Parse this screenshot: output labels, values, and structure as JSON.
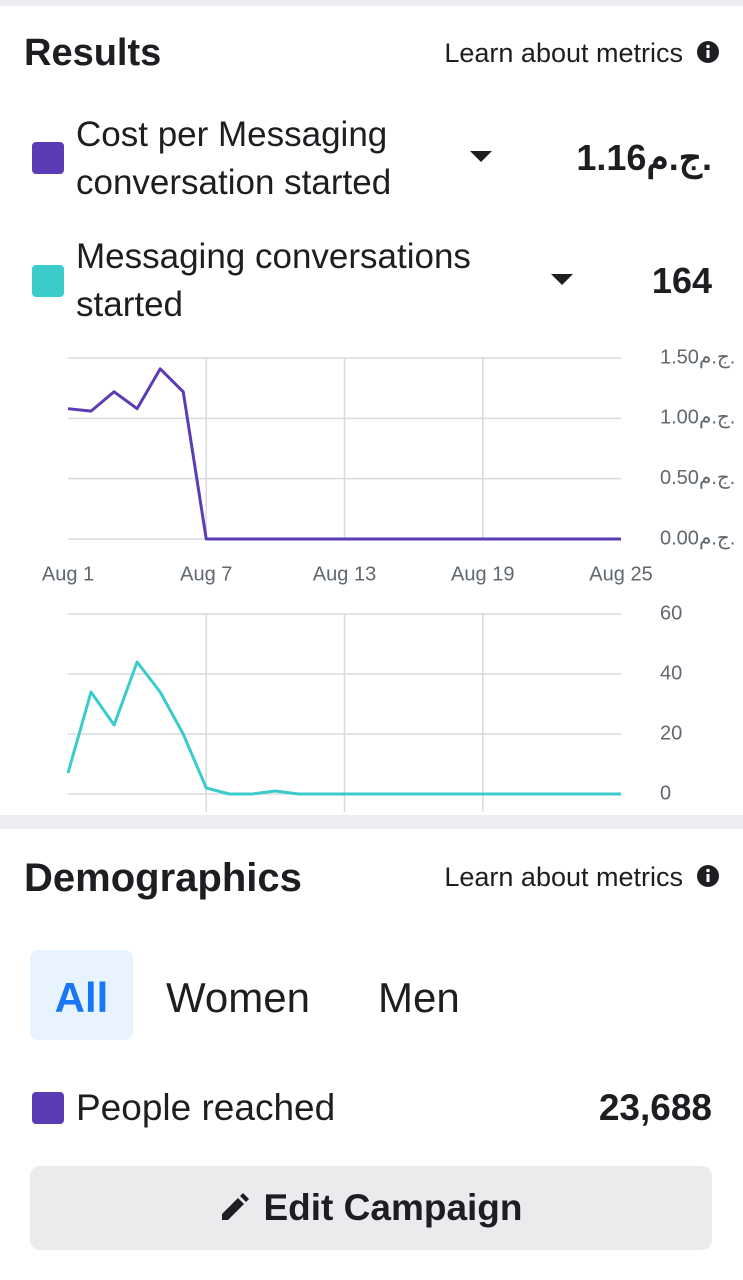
{
  "results": {
    "title": "Results",
    "learn_link": "Learn about metrics",
    "metrics": [
      {
        "label": "Cost per Messaging conversation started",
        "value": "1.16ج.م."
      },
      {
        "label": "Messaging conversations started",
        "value": "164"
      }
    ]
  },
  "chart_data": [
    {
      "type": "line",
      "categories": [
        "Aug 1",
        null,
        null,
        null,
        null,
        null,
        "Aug 7",
        null,
        null,
        null,
        null,
        null,
        "Aug 13",
        null,
        null,
        null,
        null,
        null,
        "Aug 19",
        null,
        null,
        null,
        null,
        null,
        "Aug 25"
      ],
      "series": [
        {
          "color": "#5b3cb4",
          "values": [
            1.08,
            1.06,
            1.22,
            1.08,
            1.41,
            1.22,
            0,
            0,
            0,
            0,
            0,
            0,
            0,
            0,
            0,
            0,
            0,
            0,
            0,
            0,
            0,
            0,
            0,
            0,
            0
          ]
        }
      ],
      "ylim": [
        0,
        1.5
      ],
      "yticks": [
        {
          "value": 0,
          "label": "0.00ج.م."
        },
        {
          "value": 0.5,
          "label": "0.50ج.م."
        },
        {
          "value": 1,
          "label": "1.00ج.م."
        },
        {
          "value": 1.5,
          "label": "1.50ج.م."
        }
      ],
      "grid": true
    },
    {
      "type": "line",
      "categories": [
        null,
        null,
        null,
        null,
        null,
        null,
        null,
        null,
        null,
        null,
        null,
        null,
        null,
        null,
        null,
        null,
        null,
        null,
        null,
        null,
        null,
        null,
        null,
        null,
        null
      ],
      "series": [
        {
          "color": "#3ccbcb",
          "values": [
            7,
            34,
            23,
            44,
            34,
            20,
            2,
            0,
            0,
            1,
            0,
            0,
            0,
            0,
            0,
            0,
            0,
            0,
            0,
            0,
            0,
            0,
            0,
            0,
            0
          ]
        }
      ],
      "ylim": [
        0,
        60
      ],
      "yticks": [
        0,
        20,
        40,
        60
      ],
      "grid": true
    }
  ],
  "demographics": {
    "title": "Demographics",
    "learn_link": "Learn about metrics",
    "tabs": [
      "All",
      "Women",
      "Men"
    ],
    "people_reached": {
      "label": "People reached",
      "value": "23,688",
      "color": "#5b3cb4"
    },
    "button": "Edit Campaign"
  }
}
